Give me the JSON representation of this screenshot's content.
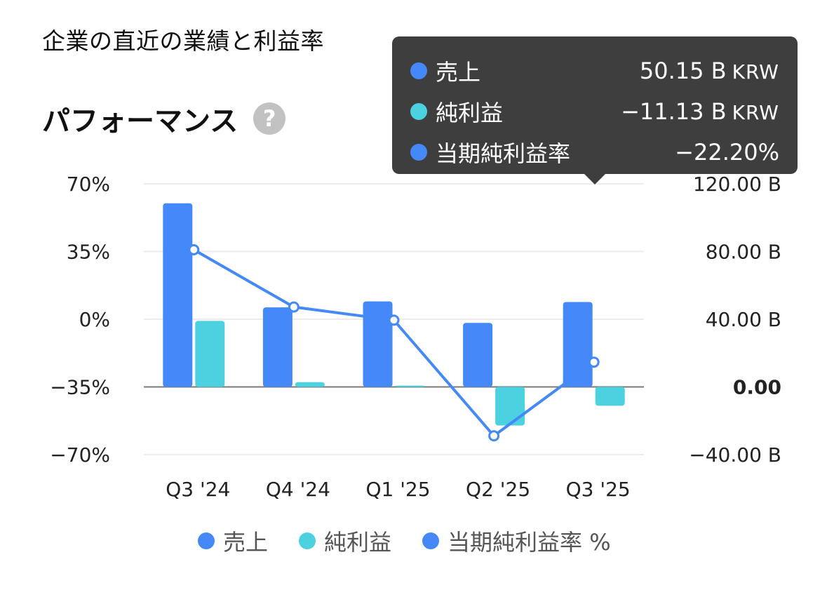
{
  "header": {
    "title": "企業の直近の業績と利益率"
  },
  "section": {
    "title": "パフォーマンス",
    "help_icon": "question-circle-icon",
    "help_glyph": "?"
  },
  "tooltip": {
    "rows": [
      {
        "label": "売上",
        "value": "50.15 B",
        "unit": "KRW",
        "color": "#4489f7"
      },
      {
        "label": "純利益",
        "value": "−11.13 B",
        "unit": "KRW",
        "color": "#4cd1e0"
      },
      {
        "label": "当期純利益率",
        "value": "−22.20%",
        "unit": "",
        "color": "#4489f7"
      }
    ]
  },
  "legend": {
    "items": [
      {
        "label": "売上",
        "color": "#4489f7"
      },
      {
        "label": "純利益",
        "color": "#4cd1e0"
      },
      {
        "label": "当期純利益率 %",
        "color": "#4489f7"
      }
    ]
  },
  "chart_data": {
    "type": "bar",
    "categories": [
      "Q3 '24",
      "Q4 '24",
      "Q1 '25",
      "Q2 '25",
      "Q3 '25"
    ],
    "series": [
      {
        "name": "売上",
        "type": "bar",
        "axis": "right",
        "color": "#4489f7",
        "values": [
          108.5,
          47.0,
          50.5,
          37.8,
          50.15
        ]
      },
      {
        "name": "純利益",
        "type": "bar",
        "axis": "right",
        "color": "#4cd1e0",
        "values": [
          39.0,
          2.8,
          0.8,
          -22.8,
          -11.13
        ]
      },
      {
        "name": "当期純利益率 %",
        "type": "line",
        "axis": "left",
        "color": "#4489f7",
        "values": [
          35.9,
          6.3,
          -0.5,
          -60.3,
          -22.2
        ]
      }
    ],
    "y_left": {
      "ticks": [
        "70%",
        "35%",
        "0%",
        "−35%",
        "−70%"
      ],
      "tick_values": [
        70,
        35,
        0,
        -35,
        -70
      ],
      "range": [
        -70,
        70
      ]
    },
    "y_right": {
      "ticks": [
        "120.00 B",
        "80.00 B",
        "40.00 B",
        "0.00",
        "−40.00 B"
      ],
      "tick_values": [
        120,
        80,
        40,
        0,
        -40
      ],
      "range": [
        -40,
        120
      ]
    },
    "highlight_category": "Q3 '25",
    "grid": true
  }
}
